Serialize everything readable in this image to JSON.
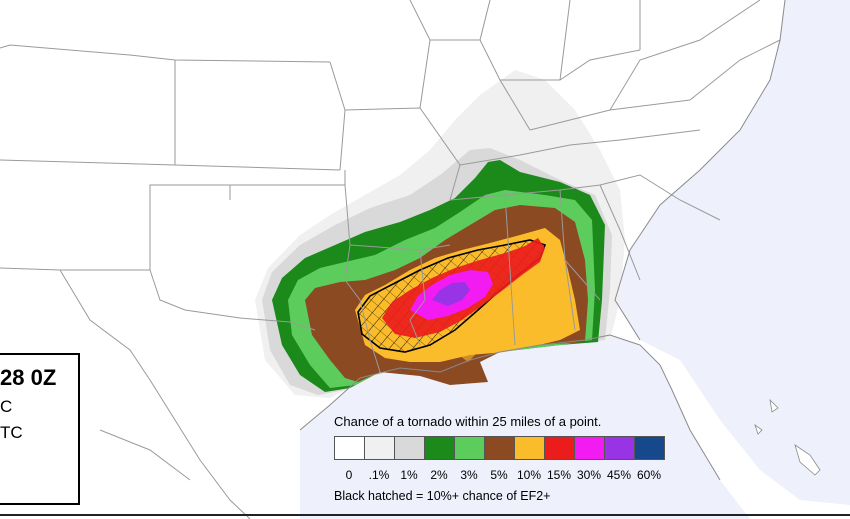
{
  "map": {
    "ocean_color": "#eef1fb",
    "land_color": "#ffffff",
    "border_color": "#9a9a9a"
  },
  "risk_levels": [
    {
      "label": "0",
      "color": "#ffffff"
    },
    {
      "label": ".1%",
      "color": "#f0f0f0"
    },
    {
      "label": "1%",
      "color": "#d9d9d9"
    },
    {
      "label": "2%",
      "color": "#1b8a1b"
    },
    {
      "label": "3%",
      "color": "#5ccd5c"
    },
    {
      "label": "5%",
      "color": "#8b4a22"
    },
    {
      "label": "10%",
      "color": "#fbbc2c"
    },
    {
      "label": "15%",
      "color": "#ec1c1c"
    },
    {
      "label": "30%",
      "color": "#f21bf2"
    },
    {
      "label": "45%",
      "color": "#9933e6"
    },
    {
      "label": "60%",
      "color": "#16498c"
    }
  ],
  "info_box": {
    "title": "28 0Z",
    "line2": "C",
    "line3": "TC"
  },
  "legend": {
    "title": "Chance of a tornado within 25 miles of a point.",
    "note": "Black hatched = 10%+ chance of EF2+"
  }
}
